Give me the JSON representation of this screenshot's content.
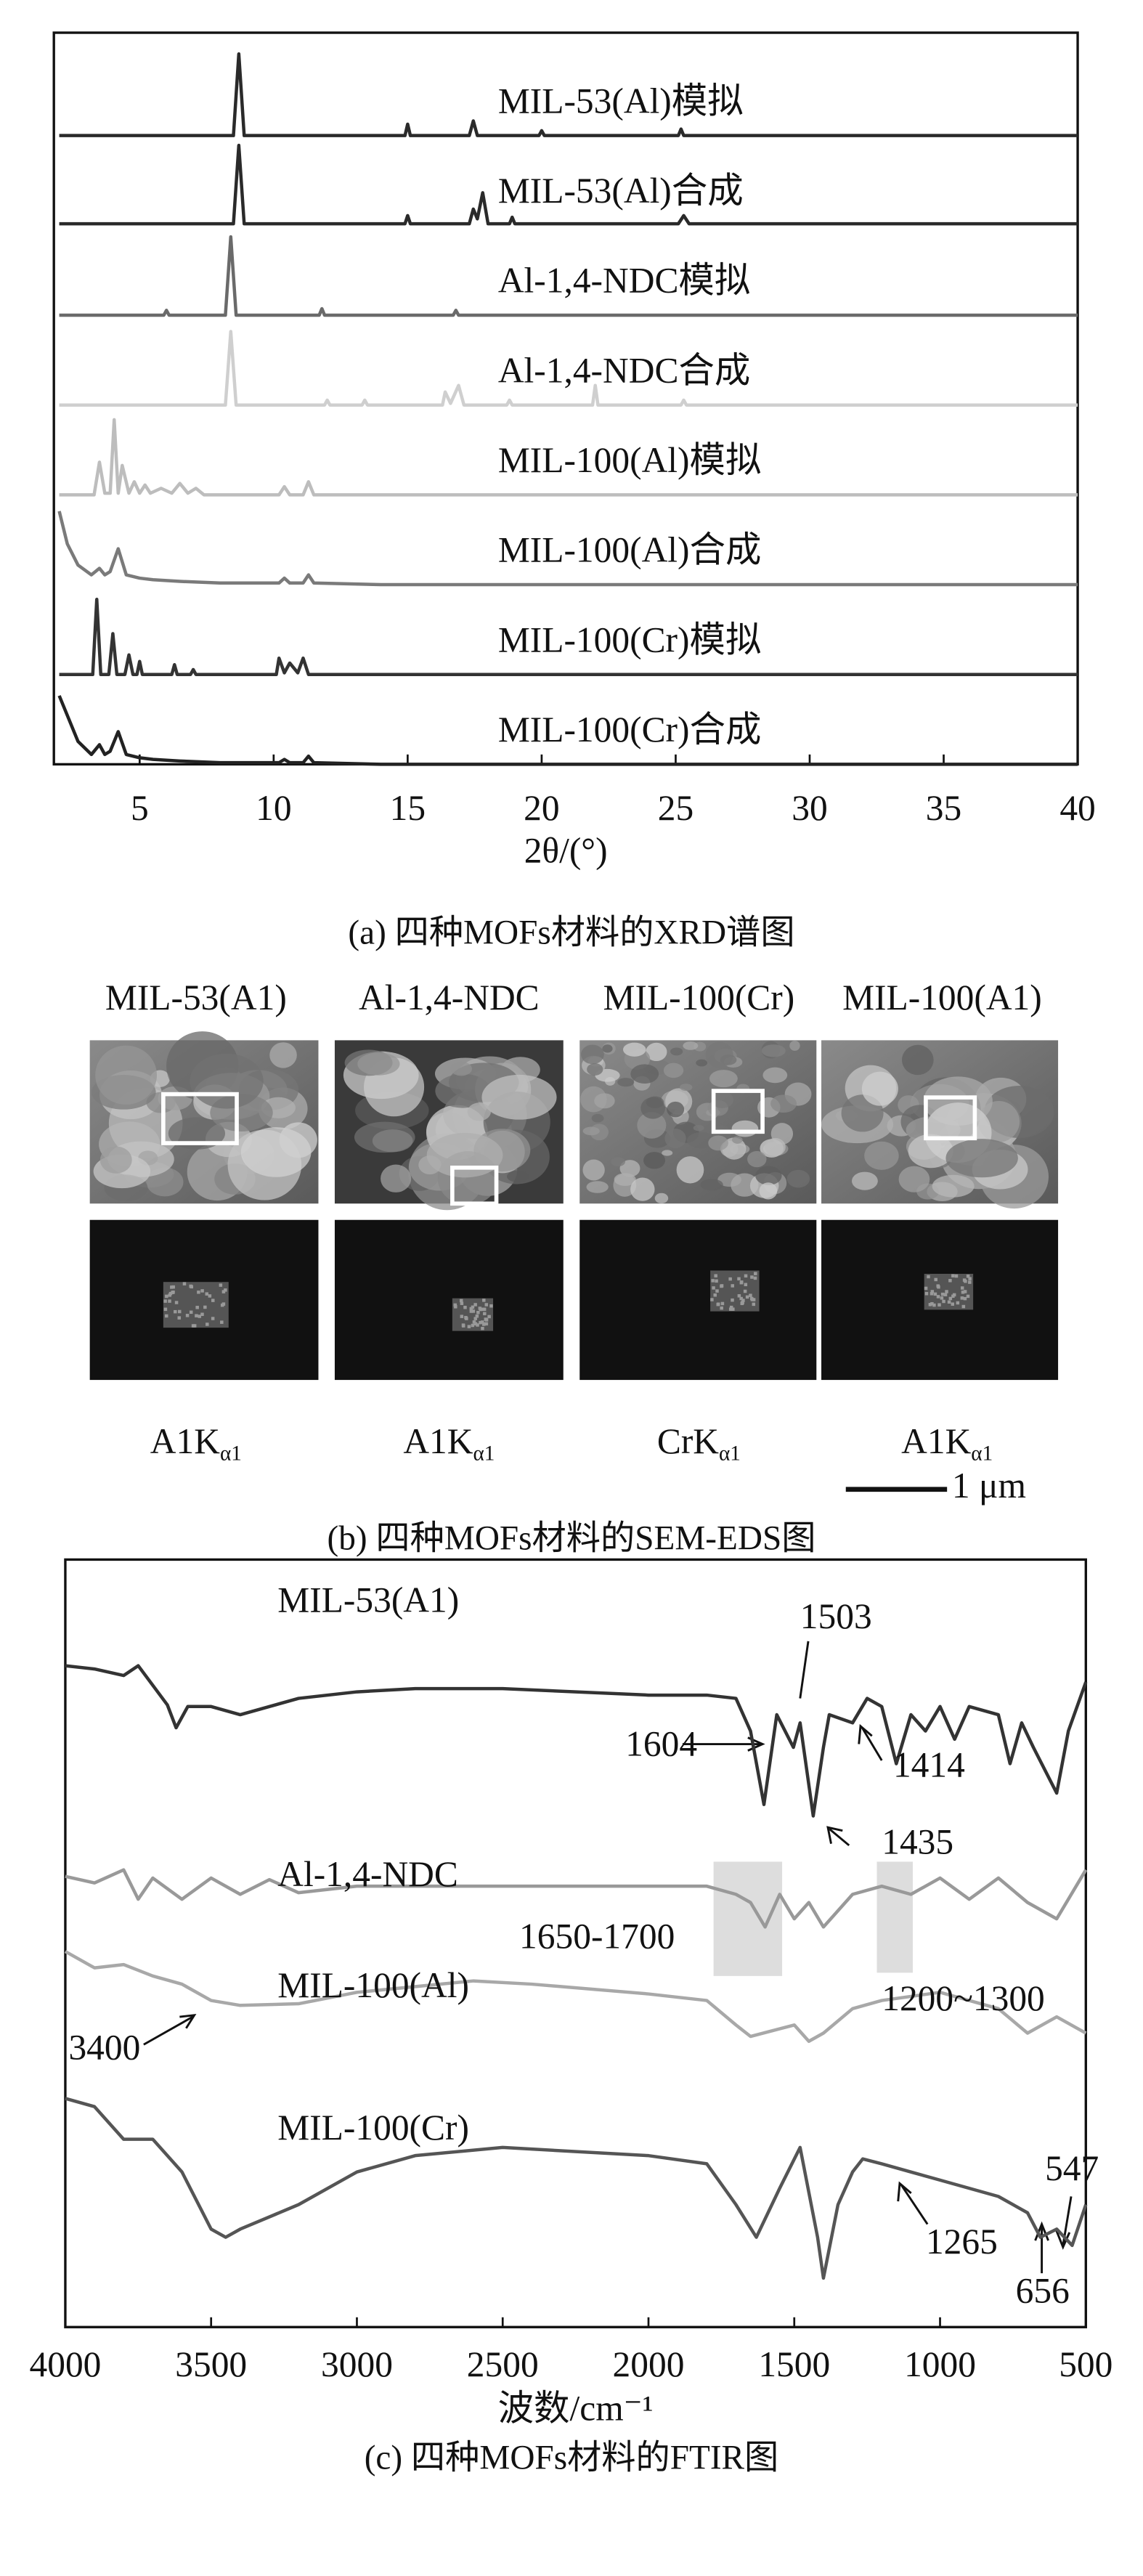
{
  "chart_data": [
    {
      "type": "line",
      "xlabel": "2θ/(°)",
      "caption": "(a) 四种MOFs材料的XRD谱图",
      "xlim": [
        1.8,
        40
      ],
      "xticks": [
        5,
        10,
        15,
        20,
        25,
        30,
        35,
        40
      ],
      "series": [
        {
          "name": "MIL-53(Al)模拟",
          "color": "#2a2a2a",
          "x": [
            2,
            8.5,
            8.7,
            8.9,
            14.9,
            15.0,
            15.1,
            17.3,
            17.45,
            17.6,
            19.9,
            20,
            20.1,
            25.1,
            25.2,
            25.3,
            40
          ],
          "values": [
            0,
            0,
            50,
            0,
            0,
            7,
            0,
            0,
            9,
            0,
            0,
            3,
            0,
            0,
            4,
            0,
            0
          ]
        },
        {
          "name": "MIL-53(Al)合成",
          "color": "#2a2a2a",
          "x": [
            2,
            8.5,
            8.7,
            8.9,
            14.9,
            15,
            15.1,
            17.3,
            17.45,
            17.6,
            17.8,
            18.0,
            18.8,
            18.9,
            19,
            25.1,
            25.3,
            25.5,
            40
          ],
          "values": [
            1,
            1,
            49,
            1,
            1,
            6,
            1,
            1,
            10,
            4,
            20,
            1,
            1,
            5,
            1,
            1,
            6,
            1,
            1
          ]
        },
        {
          "name": "Al-1,4-NDC模拟",
          "color": "#6a6a6a",
          "x": [
            2,
            5.9,
            6,
            6.1,
            8.2,
            8.4,
            8.6,
            11.7,
            11.8,
            11.9,
            16.7,
            16.8,
            16.9,
            40
          ],
          "values": [
            0,
            0,
            3,
            0,
            0,
            48,
            0,
            0,
            4,
            0,
            0,
            3,
            0,
            0
          ]
        },
        {
          "name": "Al-1,4-NDC合成",
          "color": "#cfcfcf",
          "x": [
            2,
            8.2,
            8.4,
            8.6,
            11.9,
            12,
            12.1,
            13.3,
            13.4,
            13.5,
            16.3,
            16.4,
            16.6,
            16.9,
            17.1,
            18.7,
            18.8,
            18.9,
            21.9,
            22,
            22.1,
            25.2,
            25.3,
            25.4,
            40
          ],
          "values": [
            0,
            0,
            45,
            0,
            0,
            3,
            0,
            0,
            3,
            0,
            0,
            8,
            1,
            12,
            0,
            0,
            3,
            0,
            0,
            12,
            0,
            0,
            3,
            0,
            0
          ]
        },
        {
          "name": "MIL-100(Al)模拟",
          "color": "#bdbdbd",
          "x": [
            2,
            3.3,
            3.5,
            3.7,
            3.9,
            4.05,
            4.2,
            4.35,
            4.6,
            4.8,
            5.0,
            5.2,
            5.4,
            5.8,
            6.2,
            6.5,
            6.8,
            7.1,
            7.4,
            10.2,
            10.4,
            10.6,
            11.1,
            11.3,
            11.5,
            40
          ],
          "values": [
            0,
            0,
            20,
            1,
            1,
            46,
            1,
            18,
            1,
            8,
            1,
            6,
            1,
            4,
            1,
            7,
            1,
            4,
            0,
            0,
            5,
            0,
            0,
            8,
            0,
            0
          ]
        },
        {
          "name": "MIL-100(Al)合成",
          "color": "#7a7a7a",
          "x": [
            2,
            2.3,
            2.7,
            3.2,
            3.5,
            3.7,
            3.9,
            4.2,
            4.5,
            5,
            5.5,
            6.5,
            8,
            10.2,
            10.4,
            10.6,
            11.1,
            11.3,
            11.5,
            14,
            40
          ],
          "values": [
            45,
            25,
            12,
            6,
            10,
            6,
            8,
            22,
            6,
            4,
            3,
            2,
            1,
            1,
            4,
            1,
            1,
            6,
            1,
            0,
            0
          ]
        },
        {
          "name": "MIL-100(Cr)模拟",
          "color": "#333333",
          "x": [
            2,
            3.25,
            3.4,
            3.55,
            3.85,
            4.0,
            4.15,
            4.45,
            4.6,
            4.75,
            4.9,
            5.0,
            5.1,
            6.2,
            6.3,
            6.4,
            6.9,
            7,
            7.1,
            10.1,
            10.2,
            10.4,
            10.6,
            10.9,
            11.1,
            11.3,
            40
          ],
          "values": [
            0,
            0,
            46,
            0,
            0,
            25,
            0,
            0,
            12,
            0,
            0,
            8,
            0,
            0,
            6,
            0,
            0,
            3,
            0,
            0,
            10,
            1,
            7,
            1,
            10,
            0,
            0
          ]
        },
        {
          "name": "MIL-100(Cr)合成",
          "color": "#222222",
          "x": [
            2,
            2.3,
            2.7,
            3.2,
            3.5,
            3.7,
            3.9,
            4.2,
            4.5,
            5,
            5.5,
            6.5,
            8,
            10.2,
            10.4,
            10.6,
            11.1,
            11.3,
            11.5,
            14,
            40
          ],
          "values": [
            42,
            30,
            14,
            6,
            12,
            6,
            8,
            20,
            6,
            4,
            3,
            2,
            1,
            1,
            3,
            1,
            1,
            5,
            1,
            0,
            0
          ]
        }
      ]
    },
    {
      "type": "line",
      "xlabel": "波数/cm⁻¹",
      "caption": "(c) 四种MOFs材料的FTIR图",
      "xlim": [
        4000,
        500
      ],
      "xticks": [
        4000,
        3500,
        3000,
        2500,
        2000,
        1500,
        1000,
        500
      ],
      "series": [
        {
          "name": "MIL-53(A1)",
          "color": "#333333",
          "x": [
            4000,
            3900,
            3800,
            3750,
            3700,
            3650,
            3620,
            3580,
            3500,
            3400,
            3300,
            3200,
            3000,
            2800,
            2500,
            2000,
            1800,
            1700,
            1650,
            1604,
            1560,
            1503,
            1480,
            1435,
            1400,
            1380,
            1300,
            1250,
            1200,
            1150,
            1100,
            1050,
            1000,
            950,
            900,
            800,
            760,
            720,
            680,
            600,
            560,
            500
          ],
          "values": [
            20,
            18,
            14,
            20,
            8,
            -4,
            -18,
            -5,
            -5,
            -10,
            -5,
            0,
            4,
            6,
            6,
            2,
            2,
            0,
            -20,
            -65,
            -10,
            -30,
            -15,
            -72,
            -30,
            -10,
            -15,
            0,
            -5,
            -40,
            -10,
            -20,
            -5,
            -25,
            -5,
            -10,
            -40,
            -15,
            -30,
            -58,
            -20,
            10
          ]
        },
        {
          "name": "Al-1,4-NDC",
          "color": "#999999",
          "x": [
            4000,
            3900,
            3800,
            3750,
            3700,
            3600,
            3500,
            3400,
            3300,
            3200,
            3000,
            2500,
            2000,
            1800,
            1700,
            1650,
            1600,
            1550,
            1500,
            1450,
            1400,
            1300,
            1200,
            1100,
            1000,
            900,
            800,
            700,
            600,
            500
          ],
          "values": [
            6,
            2,
            10,
            -8,
            5,
            -8,
            5,
            -5,
            4,
            -4,
            0,
            0,
            0,
            0,
            -5,
            -10,
            -25,
            -5,
            -20,
            -10,
            -25,
            -5,
            0,
            -5,
            5,
            -8,
            5,
            -10,
            -20,
            10
          ]
        },
        {
          "name": "MIL-100(Al)",
          "color": "#a8a8a8",
          "x": [
            4000,
            3900,
            3800,
            3700,
            3600,
            3500,
            3400,
            3200,
            3000,
            2600,
            2400,
            2000,
            1800,
            1700,
            1650,
            1500,
            1450,
            1400,
            1300,
            1200,
            1000,
            900,
            800,
            700,
            600,
            500
          ],
          "values": [
            30,
            20,
            22,
            15,
            10,
            0,
            -3,
            -2,
            5,
            12,
            10,
            4,
            0,
            -15,
            -22,
            -15,
            -25,
            -20,
            -5,
            0,
            5,
            0,
            -5,
            -20,
            -10,
            -20
          ]
        },
        {
          "name": "MIL-100(Cr)",
          "color": "#555555",
          "x": [
            4000,
            3900,
            3800,
            3700,
            3600,
            3500,
            3450,
            3400,
            3200,
            3000,
            2800,
            2500,
            2000,
            1800,
            1700,
            1630,
            1550,
            1480,
            1420,
            1400,
            1350,
            1300,
            1265,
            1200,
            1100,
            1000,
            900,
            800,
            700,
            656,
            600,
            547,
            500
          ],
          "values": [
            45,
            40,
            20,
            20,
            0,
            -35,
            -40,
            -35,
            -20,
            0,
            10,
            15,
            10,
            5,
            -20,
            -40,
            -10,
            15,
            -40,
            -65,
            -20,
            0,
            8,
            5,
            0,
            -5,
            -10,
            -15,
            -25,
            -40,
            -35,
            -45,
            -20
          ]
        }
      ],
      "annotations": [
        "1503",
        "1604",
        "1414",
        "1435",
        "1650-1700",
        "1200~1300",
        "3400",
        "1265",
        "547",
        "656"
      ]
    }
  ],
  "sem_panel": {
    "samples": [
      {
        "name": "MIL-53(A1)",
        "element": "A1K",
        "subscript": "α1"
      },
      {
        "name": "Al-1,4-NDC",
        "element": "A1K",
        "subscript": "α1"
      },
      {
        "name": "MIL-100(Cr)",
        "element": "CrK",
        "subscript": "α1"
      },
      {
        "name": "MIL-100(A1)",
        "element": "A1K",
        "subscript": "α1"
      }
    ],
    "scale_bar": "1 μm",
    "caption": "(b) 四种MOFs材料的SEM-EDS图"
  }
}
